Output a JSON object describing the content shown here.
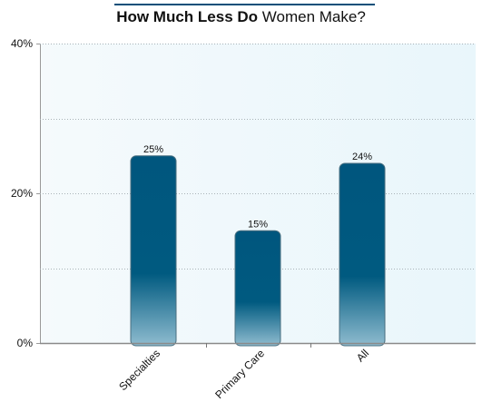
{
  "chart_data": {
    "type": "bar",
    "title_bold": "How Much Less Do",
    "title_rest": "Women Make?",
    "categories": [
      "Specialties",
      "Primary Care",
      "All"
    ],
    "values": [
      25,
      15,
      24
    ],
    "value_labels": [
      "25%",
      "15%",
      "24%"
    ],
    "ylim": [
      0,
      40
    ],
    "y_ticks": [
      {
        "value": 0,
        "label": "0%"
      },
      {
        "value": 20,
        "label": "20%"
      },
      {
        "value": 40,
        "label": "40%"
      }
    ],
    "minor_gridlines": [
      10,
      30
    ],
    "grid": true,
    "xlabel": "",
    "ylabel": ""
  },
  "colors": {
    "bar_top": "#00567e",
    "bar_bottom": "#8fbccf",
    "plot_bg_left": "#f5fafc",
    "plot_bg_right": "#e9f6fb",
    "title_rule": "#0b4f7a"
  }
}
